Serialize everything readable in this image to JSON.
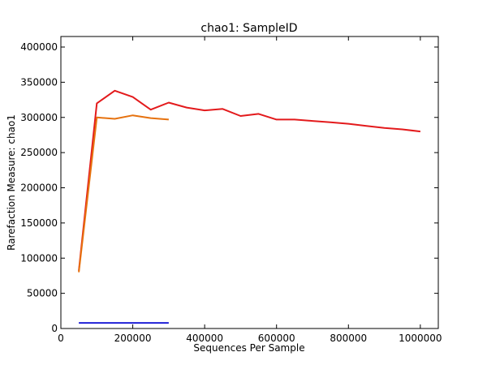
{
  "chart_data": {
    "type": "line",
    "title": "chao1: SampleID",
    "xlabel": "Sequences Per Sample",
    "ylabel": "Rarefaction Measure: chao1",
    "xlim": [
      0,
      1050000
    ],
    "ylim": [
      0,
      415000
    ],
    "x_ticks": [
      0,
      200000,
      400000,
      600000,
      800000,
      1000000
    ],
    "y_ticks": [
      0,
      50000,
      100000,
      150000,
      200000,
      250000,
      300000,
      350000,
      400000
    ],
    "grid": false,
    "legend": "none",
    "series": [
      {
        "color": "#e31a1c",
        "x": [
          50000,
          100000,
          150000,
          200000,
          250000,
          300000,
          350000,
          400000,
          450000,
          500000,
          550000,
          600000,
          650000,
          700000,
          750000,
          800000,
          850000,
          900000,
          950000,
          1000000
        ],
        "y": [
          82000,
          320000,
          338000,
          329000,
          311000,
          321000,
          314000,
          310000,
          312000,
          302000,
          305000,
          297000,
          297000,
          295000,
          293000,
          291000,
          288000,
          285000,
          283000,
          280000
        ]
      },
      {
        "color": "#e6720f",
        "x": [
          50000,
          100000,
          150000,
          200000,
          250000,
          300000
        ],
        "y": [
          80000,
          300000,
          298000,
          303000,
          299000,
          297000
        ]
      },
      {
        "color": "#1f1fd6",
        "x": [
          50000,
          100000,
          150000,
          200000,
          250000,
          300000
        ],
        "y": [
          8000,
          8000,
          8000,
          8000,
          8000,
          8000
        ]
      }
    ]
  }
}
